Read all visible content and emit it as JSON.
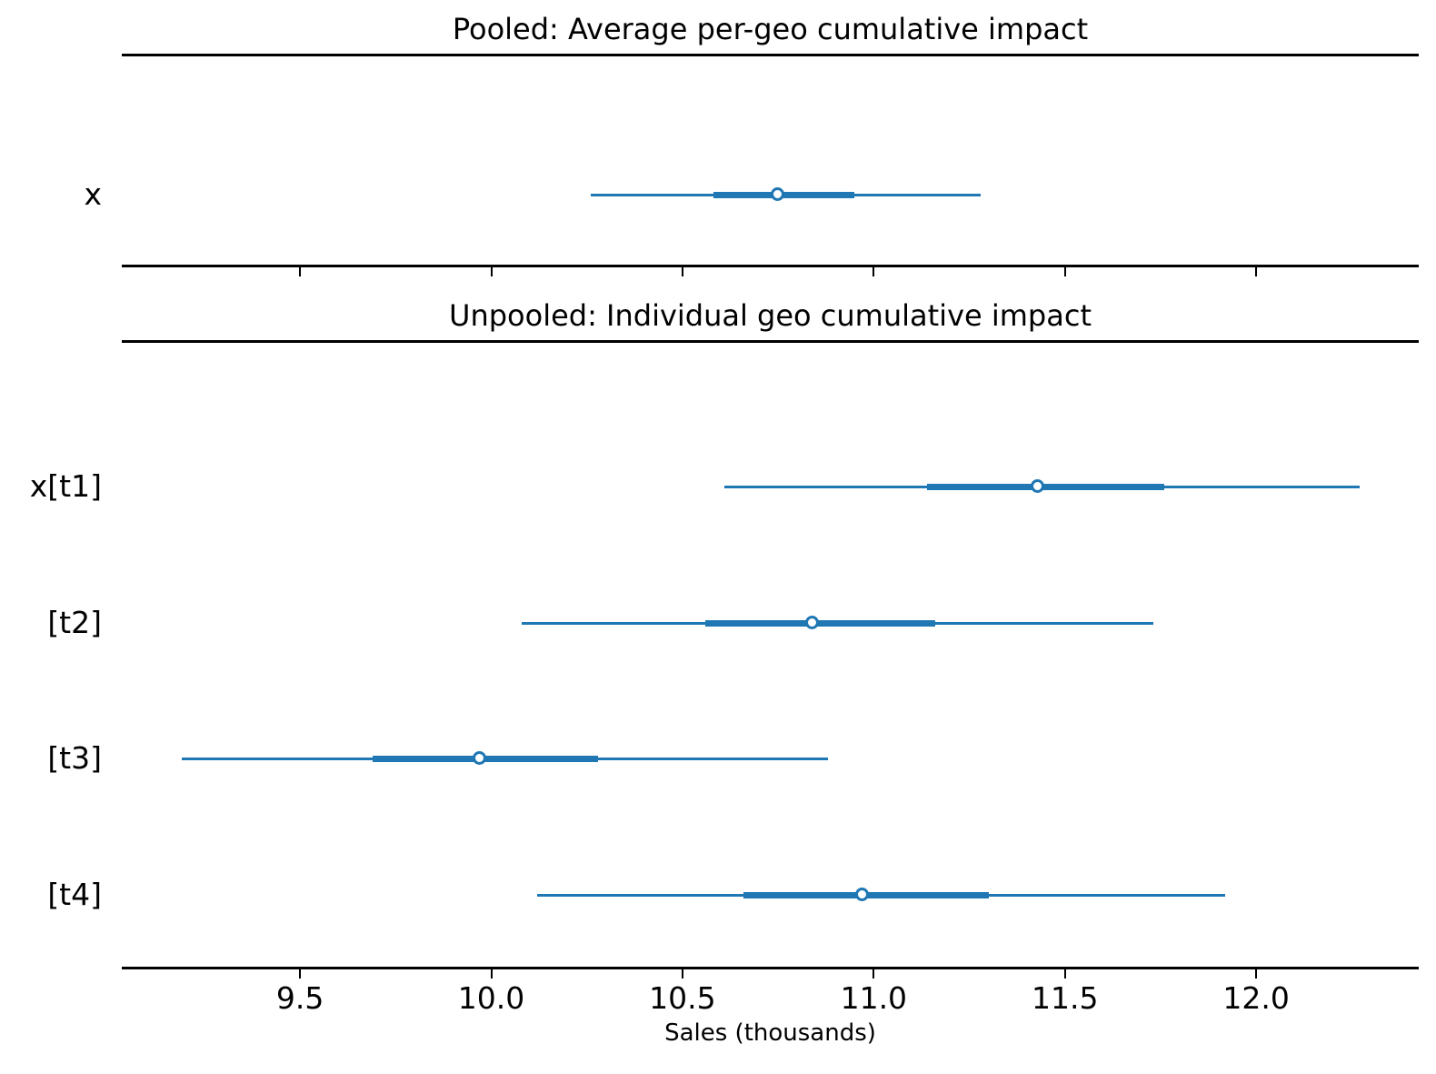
{
  "figure": {
    "accent_color": "#1f77b4",
    "axis_color": "#000000",
    "xlabel": "Sales (thousands)",
    "x_tick_labels": [
      "9.5",
      "10.0",
      "10.5",
      "11.0",
      "11.5",
      "12.0"
    ],
    "panels": [
      {
        "title": "Pooled: Average per-geo cumulative impact"
      },
      {
        "title": "Unpooled: Individual geo cumulative impact"
      }
    ]
  },
  "chart_data": {
    "type": "scatter",
    "subtype": "forest-plot",
    "xlabel": "Sales (thousands)",
    "xlim": [
      9.03,
      12.43
    ],
    "x_ticks": [
      9.5,
      10.0,
      10.5,
      11.0,
      11.5,
      12.0
    ],
    "grid": false,
    "legend": false,
    "panels": [
      {
        "title": "Pooled: Average per-geo cumulative impact",
        "rows": [
          {
            "label": "x",
            "mean": 10.75,
            "interval_inner": [
              10.58,
              10.95
            ],
            "interval_outer": [
              10.26,
              11.28
            ]
          }
        ]
      },
      {
        "title": "Unpooled: Individual geo cumulative impact",
        "rows": [
          {
            "label": "x[t1]",
            "mean": 11.43,
            "interval_inner": [
              11.14,
              11.76
            ],
            "interval_outer": [
              10.61,
              12.27
            ]
          },
          {
            "label": "[t2]",
            "mean": 10.84,
            "interval_inner": [
              10.56,
              11.16
            ],
            "interval_outer": [
              10.08,
              11.73
            ]
          },
          {
            "label": "[t3]",
            "mean": 9.97,
            "interval_inner": [
              9.69,
              10.28
            ],
            "interval_outer": [
              9.19,
              10.88
            ]
          },
          {
            "label": "[t4]",
            "mean": 10.97,
            "interval_inner": [
              10.66,
              11.3
            ],
            "interval_outer": [
              10.12,
              11.92
            ]
          }
        ]
      }
    ]
  }
}
